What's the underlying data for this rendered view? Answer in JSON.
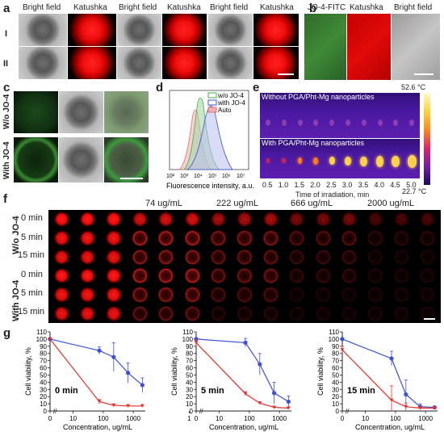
{
  "panels": {
    "a": "a",
    "b": "b",
    "c": "c",
    "d": "d",
    "e": "e",
    "f": "f",
    "g": "g"
  },
  "panel_a": {
    "col_labels": [
      "Bright field",
      "Katushka",
      "Bright field",
      "Katushka",
      "Bright field",
      "Katushka"
    ],
    "row_labels": [
      "I",
      "II"
    ]
  },
  "panel_b": {
    "col_labels": [
      "JO-4-FITC",
      "Katushka",
      "Bright field"
    ]
  },
  "panel_c": {
    "row_labels": [
      "W/o JO-4",
      "With JO-4"
    ]
  },
  "panel_d": {
    "xlabel": "Fluorescence intensity, a.u.",
    "xticks": [
      "10²",
      "10³",
      "10⁴",
      "10⁵",
      "10⁶",
      "10⁷"
    ],
    "legend": [
      "w/o JO-4",
      "with JO-4",
      "Auto"
    ],
    "colors": {
      "wo": "#3fae49",
      "with": "#3b4fd6",
      "auto": "#e66a6a"
    }
  },
  "panel_e": {
    "temp_max": "52.6 °C",
    "temp_min": "22.7 °C",
    "row1_label": "Without PGA/Pht-Mg nanoparticles",
    "row2_label": "With PGA/Pht-Mg nanoparticles",
    "xticks": [
      "0.5",
      "1.0",
      "1.5",
      "2.0",
      "2.5",
      "3.0",
      "3.5",
      "4.0",
      "4.5",
      "5.0"
    ],
    "xlabel": "Time of irradiation, min"
  },
  "panel_f": {
    "concentrations": [
      "74 ug/mL",
      "222 ug/mL",
      "666 ug/mL",
      "2000 ug/mL"
    ],
    "time_labels": [
      "0 min",
      "5 min",
      "15 min",
      "0 min",
      "5 min",
      "15 min"
    ],
    "group_labels": [
      "W/o JO-4",
      "With JO-4"
    ]
  },
  "chart_data": [
    {
      "type": "line",
      "title": "0 min",
      "xlabel": "Concentration, ug/mL",
      "ylabel": "Cell viability, %",
      "xscale": "log",
      "xticks": [
        "0",
        "10",
        "100",
        "1000"
      ],
      "yticks": [
        "0",
        "10",
        "20",
        "30",
        "40",
        "50",
        "60",
        "70",
        "80",
        "90",
        "100",
        "110"
      ],
      "ylim": [
        0,
        110
      ],
      "series": [
        {
          "color": "#3e4fd9",
          "x": [
            0,
            74,
            222,
            666,
            2000
          ],
          "y": [
            100,
            84,
            75,
            53,
            36
          ],
          "err": [
            2,
            5,
            20,
            14,
            10
          ]
        },
        {
          "color": "#e4332b",
          "x": [
            0,
            74,
            222,
            666,
            2000
          ],
          "y": [
            100,
            13,
            8,
            7,
            7
          ],
          "err": [
            2,
            3,
            2,
            2,
            2
          ]
        }
      ]
    },
    {
      "type": "line",
      "title": "5 min",
      "xlabel": "Concentration, ug/mL",
      "ylabel": "Cell viability, %",
      "xscale": "log",
      "xticks": [
        "0",
        "1",
        "10",
        "100",
        "1000"
      ],
      "yticks": [
        "0",
        "10",
        "20",
        "30",
        "40",
        "50",
        "60",
        "70",
        "80",
        "90",
        "100",
        "110"
      ],
      "ylim": [
        0,
        110
      ],
      "series": [
        {
          "color": "#3e4fd9",
          "x": [
            0,
            74,
            222,
            666,
            2000
          ],
          "y": [
            100,
            95,
            65,
            25,
            13
          ],
          "err": [
            2,
            6,
            15,
            15,
            8
          ]
        },
        {
          "color": "#e4332b",
          "x": [
            0,
            74,
            222,
            666,
            2000
          ],
          "y": [
            95,
            24,
            11,
            5,
            4
          ],
          "err": [
            4,
            3,
            2,
            2,
            1
          ]
        }
      ]
    },
    {
      "type": "line",
      "title": "15 min",
      "xlabel": "Concentration, ug/mL",
      "ylabel": "Cell viability, %",
      "xscale": "log",
      "xticks": [
        "0",
        "10",
        "100",
        "1000"
      ],
      "yticks": [
        "0",
        "10",
        "20",
        "30",
        "40",
        "50",
        "60",
        "70",
        "80",
        "90",
        "100",
        "110"
      ],
      "ylim": [
        0,
        110
      ],
      "series": [
        {
          "color": "#3e4fd9",
          "x": [
            0,
            74,
            222,
            666,
            2000
          ],
          "y": [
            100,
            73,
            23,
            6,
            5
          ],
          "err": [
            2,
            10,
            20,
            4,
            2
          ]
        },
        {
          "color": "#e4332b",
          "x": [
            0,
            74,
            222,
            666,
            2000
          ],
          "y": [
            85,
            15,
            6,
            4,
            4
          ],
          "err": [
            5,
            20,
            5,
            2,
            1
          ]
        }
      ]
    }
  ]
}
